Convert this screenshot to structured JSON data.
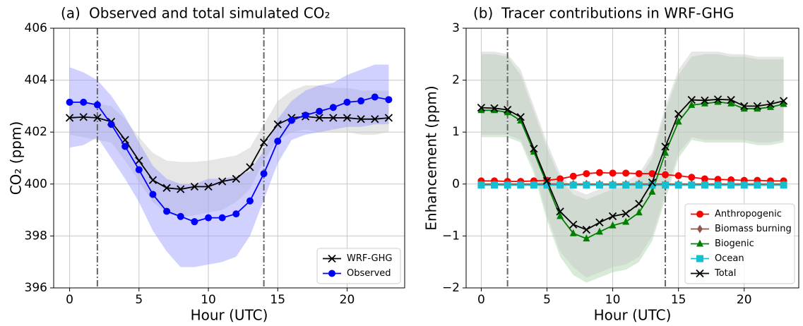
{
  "chart_data": [
    {
      "type": "line",
      "panel_label": "(a)",
      "title": "Observed and total simulated CO₂",
      "xlabel": "Hour (UTC)",
      "ylabel": "CO₂ (ppm)",
      "x": [
        0,
        1,
        2,
        3,
        4,
        5,
        6,
        7,
        8,
        9,
        10,
        11,
        12,
        13,
        14,
        15,
        16,
        17,
        18,
        19,
        20,
        21,
        22,
        23
      ],
      "xlim": [
        -1.15,
        24.15
      ],
      "xticks": [
        0,
        5,
        10,
        15,
        20
      ],
      "ylim": [
        396,
        406
      ],
      "yticks": [
        396,
        398,
        400,
        402,
        404,
        406
      ],
      "grid": true,
      "legend": "lower right",
      "vlines": [
        2,
        14
      ],
      "series": [
        {
          "name": "WRF-GHG",
          "color": "#000000",
          "marker": "x",
          "band_color": "#c8c8c8",
          "values": [
            402.55,
            402.58,
            402.55,
            402.4,
            401.7,
            400.9,
            400.15,
            399.85,
            399.8,
            399.9,
            399.9,
            400.1,
            400.2,
            400.65,
            401.6,
            402.3,
            402.55,
            402.6,
            402.55,
            402.55,
            402.55,
            402.5,
            402.5,
            402.55
          ],
          "band_upper": [
            403.1,
            403.1,
            403.1,
            403.0,
            402.5,
            401.8,
            401.2,
            400.9,
            400.85,
            400.85,
            400.9,
            401.0,
            401.1,
            401.4,
            402.3,
            403.2,
            403.6,
            403.8,
            403.8,
            403.7,
            403.7,
            403.6,
            403.6,
            403.6
          ],
          "band_lower": [
            401.9,
            401.8,
            401.7,
            401.6,
            400.9,
            400.1,
            399.3,
            398.9,
            398.7,
            398.8,
            398.9,
            399.0,
            399.3,
            399.8,
            400.9,
            401.7,
            402.0,
            402.1,
            402.0,
            402.0,
            402.0,
            401.9,
            401.9,
            402.0
          ]
        },
        {
          "name": "Observed",
          "color": "#0000ff",
          "marker": "o",
          "band_color": "#9999ff",
          "values": [
            403.15,
            403.15,
            403.05,
            402.3,
            401.45,
            400.55,
            399.6,
            398.95,
            398.75,
            398.55,
            398.7,
            398.7,
            398.85,
            399.35,
            400.4,
            401.65,
            402.45,
            402.65,
            402.8,
            402.95,
            403.15,
            403.2,
            403.35,
            403.25
          ],
          "band_upper": [
            404.5,
            404.3,
            404.0,
            403.4,
            402.6,
            401.6,
            400.7,
            400.2,
            400.0,
            400.0,
            400.2,
            400.2,
            400.3,
            400.5,
            401.3,
            402.5,
            403.2,
            403.6,
            403.8,
            403.9,
            404.2,
            404.4,
            404.6,
            404.6
          ],
          "band_lower": [
            401.4,
            401.5,
            401.8,
            401.0,
            400.2,
            399.3,
            398.2,
            397.4,
            396.8,
            396.8,
            396.9,
            397.0,
            397.2,
            398.0,
            399.4,
            400.8,
            401.7,
            401.9,
            402.0,
            402.1,
            402.2,
            402.2,
            402.3,
            402.3
          ]
        }
      ]
    },
    {
      "type": "line",
      "panel_label": "(b)",
      "title": "Tracer contributions in WRF-GHG",
      "xlabel": "Hour (UTC)",
      "ylabel": "Enhancement (ppm)",
      "x": [
        0,
        1,
        2,
        3,
        4,
        5,
        6,
        7,
        8,
        9,
        10,
        11,
        12,
        13,
        14,
        15,
        16,
        17,
        18,
        19,
        20,
        21,
        22,
        23
      ],
      "xlim": [
        -1.15,
        24.15
      ],
      "xticks": [
        0,
        5,
        10,
        15,
        20
      ],
      "ylim": [
        -2,
        3
      ],
      "yticks": [
        {
          "value": -2,
          "label": "−2"
        },
        {
          "value": -1,
          "label": "−1"
        },
        0,
        1,
        2,
        3
      ],
      "grid": true,
      "legend": "lower right",
      "vlines": [
        2,
        14
      ],
      "series": [
        {
          "name": "Anthropogenic",
          "color": "#ff0000",
          "marker": "o",
          "values": [
            0.06,
            0.06,
            0.05,
            0.05,
            0.06,
            0.07,
            0.1,
            0.15,
            0.2,
            0.22,
            0.21,
            0.21,
            0.2,
            0.2,
            0.18,
            0.16,
            0.13,
            0.1,
            0.09,
            0.08,
            0.07,
            0.07,
            0.06,
            0.06
          ]
        },
        {
          "name": "Biomass burning",
          "color": "#8c564b",
          "marker": "d",
          "values": [
            0,
            0,
            0,
            0,
            0,
            0,
            0,
            0,
            0,
            0,
            0,
            0,
            0,
            0,
            0,
            0,
            0,
            0,
            0,
            0,
            0,
            0,
            0,
            0
          ]
        },
        {
          "name": "Biogenic",
          "color": "#008000",
          "marker": "^",
          "band_color": "#a8d0a8",
          "values": [
            1.42,
            1.42,
            1.38,
            1.22,
            0.62,
            0.0,
            -0.62,
            -0.95,
            -1.05,
            -0.92,
            -0.8,
            -0.73,
            -0.55,
            -0.15,
            0.6,
            1.2,
            1.52,
            1.55,
            1.58,
            1.55,
            1.45,
            1.45,
            1.48,
            1.54
          ],
          "band_upper": [
            2.5,
            2.5,
            2.45,
            2.1,
            1.4,
            0.7,
            0.1,
            -0.2,
            -0.3,
            -0.2,
            -0.1,
            -0.05,
            0.1,
            0.5,
            1.4,
            2.1,
            2.45,
            2.5,
            2.5,
            2.45,
            2.45,
            2.4,
            2.4,
            2.4
          ],
          "band_lower": [
            0.9,
            0.9,
            0.9,
            0.8,
            0.2,
            -0.7,
            -1.4,
            -1.75,
            -1.9,
            -1.8,
            -1.7,
            -1.65,
            -1.5,
            -1.1,
            -0.3,
            0.5,
            0.85,
            0.8,
            0.8,
            0.8,
            0.8,
            0.75,
            0.75,
            0.8
          ]
        },
        {
          "name": "Ocean",
          "color": "#17becf",
          "marker": "s",
          "values": [
            -0.02,
            -0.02,
            -0.02,
            -0.02,
            -0.02,
            -0.02,
            -0.02,
            -0.02,
            -0.02,
            -0.02,
            -0.02,
            -0.02,
            -0.02,
            -0.02,
            -0.02,
            -0.02,
            -0.02,
            -0.02,
            -0.02,
            -0.02,
            -0.02,
            -0.02,
            -0.02,
            -0.02
          ]
        },
        {
          "name": "Total",
          "color": "#000000",
          "marker": "x",
          "band_color": "#c8c8c8",
          "values": [
            1.47,
            1.46,
            1.43,
            1.29,
            0.68,
            0.06,
            -0.53,
            -0.78,
            -0.88,
            -0.74,
            -0.62,
            -0.57,
            -0.38,
            0.03,
            0.72,
            1.35,
            1.62,
            1.61,
            1.63,
            1.62,
            1.5,
            1.5,
            1.54,
            1.6
          ],
          "band_upper": [
            2.55,
            2.55,
            2.5,
            2.2,
            1.5,
            0.8,
            0.2,
            -0.1,
            -0.2,
            -0.1,
            0.0,
            0.05,
            0.2,
            0.6,
            1.5,
            2.2,
            2.55,
            2.55,
            2.55,
            2.5,
            2.5,
            2.45,
            2.45,
            2.45
          ],
          "band_lower": [
            0.95,
            0.95,
            0.95,
            0.85,
            0.3,
            -0.6,
            -1.3,
            -1.6,
            -1.8,
            -1.7,
            -1.6,
            -1.55,
            -1.4,
            -1.0,
            -0.2,
            0.6,
            0.9,
            0.85,
            0.85,
            0.85,
            0.85,
            0.8,
            0.8,
            0.85
          ]
        }
      ]
    }
  ]
}
